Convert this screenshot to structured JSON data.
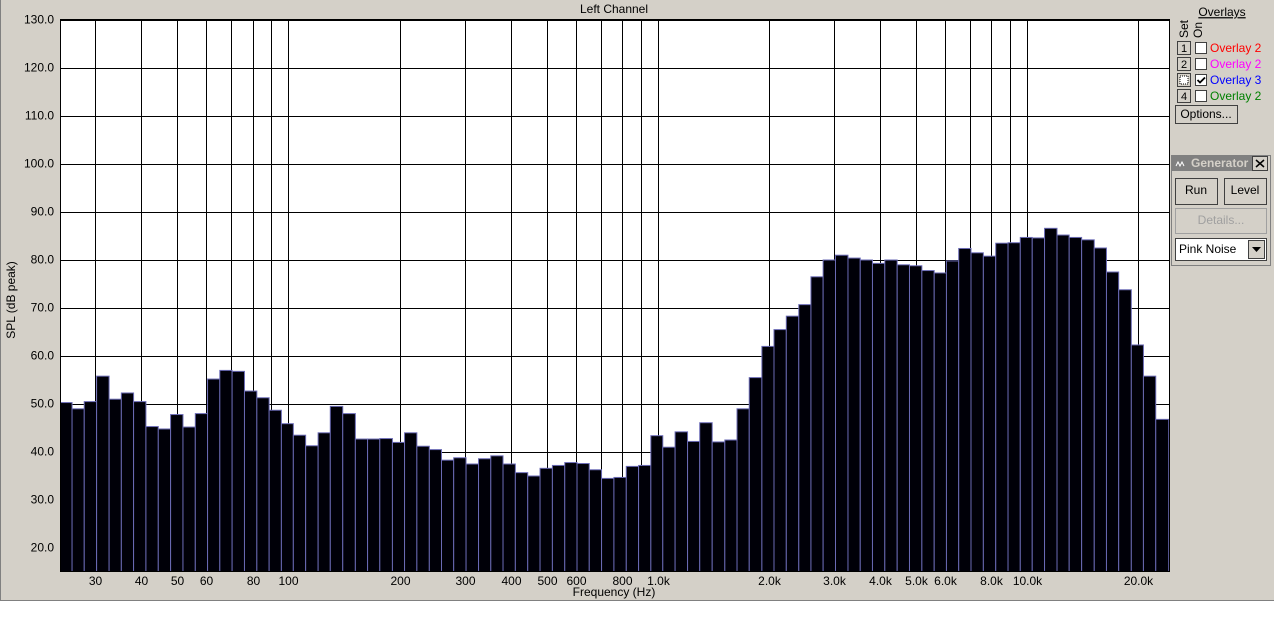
{
  "chart_data": {
    "type": "bar",
    "title": "Left Channel",
    "x_label": "Frequency (Hz)",
    "y_label": "SPL (dB peak)",
    "xscale": "log",
    "grid": true,
    "color": "#000008",
    "edgecolor": "#6a6ab4",
    "x": [
      25,
      27,
      29.1,
      31.5,
      34,
      36.7,
      39.6,
      42.8,
      46.2,
      49.9,
      53.9,
      58.2,
      62.8,
      67.8,
      73.2,
      79.1,
      85.4,
      92.2,
      99.5,
      107,
      116,
      125,
      135,
      146,
      158,
      170,
      184,
      199,
      214,
      232,
      250,
      270,
      291,
      315,
      340,
      367,
      396,
      428,
      462,
      499,
      539,
      582,
      628,
      678,
      732,
      791,
      854,
      922,
      995,
      1070,
      1160,
      1250,
      1350,
      1460,
      1580,
      1700,
      1840,
      1990,
      2140,
      2320,
      2500,
      2700,
      2910,
      3150,
      3400,
      3670,
      3960,
      4280,
      4620,
      4990,
      5390,
      5820,
      6280,
      6780,
      7320,
      7910,
      8540,
      9220,
      9950,
      10700,
      11600,
      12500,
      13500,
      14600,
      15800,
      17000,
      18400,
      19900,
      21400,
      23200
    ],
    "values": [
      50.3,
      49,
      50.5,
      55.8,
      51,
      52.3,
      50.5,
      45.3,
      44.8,
      47.8,
      45.2,
      48,
      55.2,
      57,
      56.8,
      52.7,
      51.3,
      48.7,
      45.9,
      43.5,
      41.3,
      44,
      49.5,
      48,
      42.7,
      42.7,
      42.8,
      42,
      44,
      41.2,
      40.5,
      38.3,
      38.8,
      37.5,
      38.6,
      39.2,
      37.5,
      35.7,
      35,
      36.6,
      37.2,
      37.8,
      37.6,
      36.3,
      34.5,
      34.7,
      37,
      37.2,
      43.4,
      41,
      44.2,
      42.2,
      46.1,
      42.1,
      42.5,
      49,
      55.5,
      62,
      65.5,
      68.3,
      70.7,
      76.5,
      80,
      81,
      80.4,
      80,
      79.3,
      80,
      79,
      78.8,
      77.8,
      77.3,
      79.8,
      82.4,
      81.5,
      80.8,
      83.5,
      83.6,
      84.7,
      84.6,
      86.6,
      85.2,
      84.7,
      84.2,
      82.5,
      77.5,
      73.8,
      62.3,
      55.8,
      46.8
    ],
    "xlim": [
      24.1,
      24200
    ],
    "ylim": [
      15,
      130
    ],
    "xticks": [
      30,
      40,
      50,
      60,
      80,
      100,
      200,
      300,
      400,
      500,
      600,
      800,
      {
        "value": 1000,
        "label": "1.0k"
      },
      {
        "value": 2000,
        "label": "2.0k"
      },
      {
        "value": 3000,
        "label": "3.0k"
      },
      {
        "value": 4000,
        "label": "4.0k"
      },
      {
        "value": 5000,
        "label": "5.0k"
      },
      {
        "value": 6000,
        "label": "6.0k"
      },
      {
        "value": 8000,
        "label": "8.0k"
      },
      {
        "value": 10000,
        "label": "10.0k"
      },
      {
        "value": 20000,
        "label": "20.0k"
      }
    ],
    "xminor": [
      70,
      90,
      700,
      900,
      7000,
      9000
    ],
    "yticks": [
      {
        "value": 20,
        "label": "20.0"
      },
      {
        "value": 30,
        "label": "30.0"
      },
      {
        "value": 40,
        "label": "40.0"
      },
      {
        "value": 50,
        "label": "50.0"
      },
      {
        "value": 60,
        "label": "60.0"
      },
      {
        "value": 70,
        "label": "70.0"
      },
      {
        "value": 80,
        "label": "80.0"
      },
      {
        "value": 90,
        "label": "90.0"
      },
      {
        "value": 100,
        "label": "100.0"
      },
      {
        "value": 110,
        "label": "110.0"
      },
      {
        "value": 120,
        "label": "120.0"
      },
      {
        "value": 130,
        "label": "130.0"
      }
    ]
  },
  "overlays": {
    "title": "Overlays",
    "set_label": "Set",
    "on_label": "On",
    "options": "Options...",
    "rows": [
      {
        "set": "1",
        "checked": false,
        "label": "Overlay 2",
        "color": "#ff0000"
      },
      {
        "set": "2",
        "checked": false,
        "label": "Overlay 2",
        "color": "#ff00ff"
      },
      {
        "checked": true,
        "label": "Overlay 3",
        "color": "#0000ff"
      },
      {
        "set": "4",
        "checked": false,
        "label": "Overlay 2",
        "color": "#008000"
      }
    ]
  },
  "generator": {
    "title": "Generator",
    "run": "Run",
    "level": "Level",
    "details": "Details...",
    "source": "Pink Noise"
  }
}
